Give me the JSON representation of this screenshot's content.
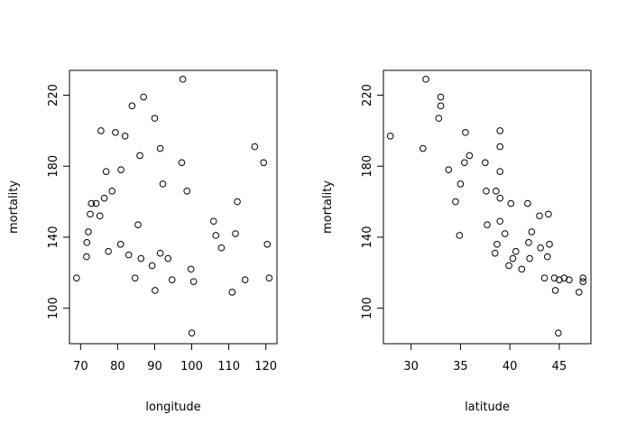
{
  "chart_data": [
    {
      "type": "scatter",
      "title": "",
      "xlabel": "longitude",
      "ylabel": "mortality",
      "xlim": [
        67,
        123
      ],
      "ylim": [
        80,
        234
      ],
      "xticks": [
        70,
        80,
        90,
        100,
        110,
        120
      ],
      "yticks": [
        100,
        140,
        180,
        220
      ],
      "grid": false,
      "points": [
        [
          68.9,
          117
        ],
        [
          71.6,
          129
        ],
        [
          71.7,
          137
        ],
        [
          72.1,
          143
        ],
        [
          72.6,
          153
        ],
        [
          72.9,
          159
        ],
        [
          74.2,
          159
        ],
        [
          75.2,
          152
        ],
        [
          75.5,
          200
        ],
        [
          76.4,
          162
        ],
        [
          76.9,
          177
        ],
        [
          77.5,
          132
        ],
        [
          78.5,
          166
        ],
        [
          79.4,
          199
        ],
        [
          80.8,
          136
        ],
        [
          80.9,
          178
        ],
        [
          82.0,
          197
        ],
        [
          83.0,
          130
        ],
        [
          83.9,
          214
        ],
        [
          84.7,
          117
        ],
        [
          85.5,
          147
        ],
        [
          86.0,
          186
        ],
        [
          86.3,
          128
        ],
        [
          87.0,
          219
        ],
        [
          89.3,
          124
        ],
        [
          90.0,
          207
        ],
        [
          90.1,
          110
        ],
        [
          91.5,
          190
        ],
        [
          91.5,
          131
        ],
        [
          92.2,
          170
        ],
        [
          93.6,
          128
        ],
        [
          94.7,
          116
        ],
        [
          97.3,
          182
        ],
        [
          97.6,
          229
        ],
        [
          98.7,
          166
        ],
        [
          99.8,
          122
        ],
        [
          100.0,
          86
        ],
        [
          100.5,
          115
        ],
        [
          105.9,
          149
        ],
        [
          106.5,
          141
        ],
        [
          108.0,
          134
        ],
        [
          110.9,
          109
        ],
        [
          111.8,
          142
        ],
        [
          112.3,
          160
        ],
        [
          114.4,
          116
        ],
        [
          117.0,
          191
        ],
        [
          119.4,
          182
        ],
        [
          120.4,
          136
        ],
        [
          120.9,
          117
        ]
      ]
    },
    {
      "type": "scatter",
      "title": "",
      "xlabel": "latitude",
      "ylabel": "mortality",
      "xlim": [
        27.2,
        48.2
      ],
      "ylim": [
        80,
        234
      ],
      "xticks": [
        30,
        35,
        40,
        45
      ],
      "yticks": [
        100,
        140,
        180,
        220
      ],
      "grid": false,
      "points": [
        [
          27.9,
          197
        ],
        [
          31.2,
          190
        ],
        [
          31.5,
          229
        ],
        [
          32.8,
          207
        ],
        [
          33.0,
          219
        ],
        [
          33.0,
          214
        ],
        [
          33.8,
          178
        ],
        [
          34.5,
          160
        ],
        [
          34.9,
          141
        ],
        [
          35.0,
          170
        ],
        [
          35.4,
          182
        ],
        [
          35.5,
          199
        ],
        [
          35.9,
          186
        ],
        [
          37.5,
          182
        ],
        [
          37.6,
          166
        ],
        [
          37.7,
          147
        ],
        [
          38.5,
          131
        ],
        [
          38.6,
          166
        ],
        [
          38.7,
          136
        ],
        [
          39.0,
          200
        ],
        [
          39.0,
          191
        ],
        [
          39.0,
          177
        ],
        [
          39.0,
          162
        ],
        [
          39.0,
          149
        ],
        [
          39.5,
          142
        ],
        [
          39.9,
          124
        ],
        [
          40.1,
          159
        ],
        [
          40.3,
          128
        ],
        [
          40.6,
          132
        ],
        [
          41.2,
          122
        ],
        [
          41.8,
          159
        ],
        [
          41.9,
          137
        ],
        [
          42.0,
          128
        ],
        [
          42.2,
          143
        ],
        [
          43.0,
          152
        ],
        [
          43.1,
          134
        ],
        [
          43.5,
          117
        ],
        [
          43.8,
          129
        ],
        [
          43.9,
          153
        ],
        [
          44.0,
          136
        ],
        [
          44.5,
          117
        ],
        [
          44.6,
          110
        ],
        [
          44.9,
          86
        ],
        [
          45.0,
          116
        ],
        [
          45.5,
          117
        ],
        [
          46.0,
          116
        ],
        [
          47.0,
          109
        ],
        [
          47.4,
          117
        ],
        [
          47.4,
          115
        ]
      ]
    }
  ]
}
